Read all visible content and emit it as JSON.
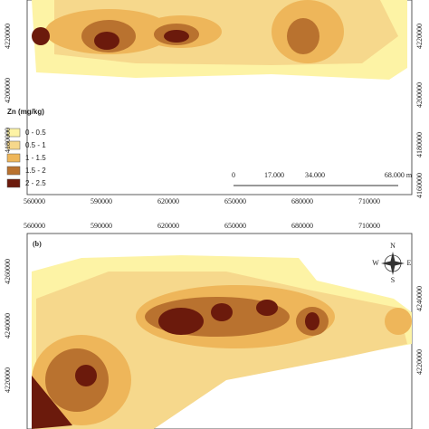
{
  "top_panel": {
    "x_labels": [
      "560000",
      "590000",
      "620000",
      "650000",
      "680000",
      "710000"
    ],
    "left_labels": [
      "4220000",
      "4200000",
      "4180000"
    ],
    "right_labels": [
      "4220000",
      "4200000",
      "4180000",
      "4160000"
    ]
  },
  "legend": {
    "title": "Zn (mg/kg)",
    "items": [
      "0 - 0.5",
      "0.5 - 1",
      "1 - 1.5",
      "1.5 - 2",
      "2 - 2.5"
    ]
  },
  "scale_bar": {
    "labels": [
      "0",
      "17.000",
      "34.000",
      "68.000 m"
    ]
  },
  "bottom_panel": {
    "panel_label": "(b)",
    "x_labels": [
      "560000",
      "590000",
      "620000",
      "650000",
      "680000",
      "710000"
    ],
    "left_labels": [
      "4260000",
      "4240000",
      "4220000"
    ],
    "right_labels": [
      "4240000",
      "4220000"
    ]
  },
  "compass": {
    "n": "N",
    "s": "S",
    "e": "E",
    "w": "W"
  }
}
